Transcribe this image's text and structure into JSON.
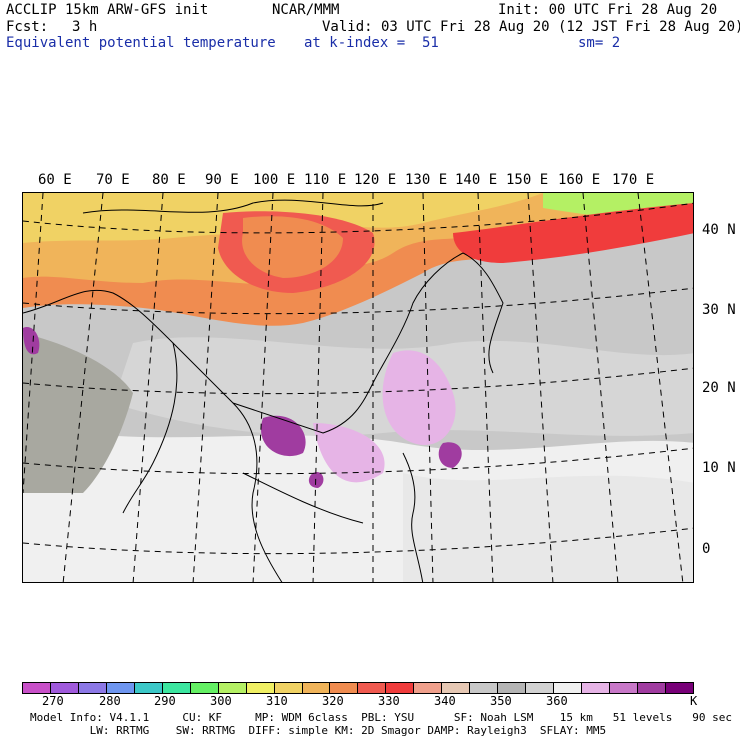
{
  "header": {
    "model": "ACCLIP 15km ARW-GFS init",
    "org": "NCAR/MMM",
    "init": "Init: 00 UTC Fri 28 Aug 20",
    "fcst_label": "Fcst:",
    "fcst_value": "3 h",
    "valid": "Valid: 03 UTC Fri 28 Aug 20 (12 JST Fri 28 Aug 20)",
    "field": "Equivalent potential temperature",
    "level": "at k-index =  51",
    "smoothing": "sm= 2"
  },
  "map": {
    "lon_labels": [
      "60 E",
      "70 E",
      "80 E",
      "90 E",
      "100 E",
      "110 E",
      "120 E",
      "130 E",
      "140 E",
      "150 E",
      "160 E",
      "170 E"
    ],
    "lat_labels": [
      "40 N",
      "30 N",
      "20 N",
      "10 N",
      "0"
    ]
  },
  "colorbar": {
    "colors": [
      "#c850c8",
      "#a05adc",
      "#8c78e6",
      "#6e96f0",
      "#3cc8c8",
      "#3ce6a0",
      "#64f064",
      "#b4f064",
      "#f0f064",
      "#f0d264",
      "#f0b45a",
      "#f08c50",
      "#f05a50",
      "#f03c3c",
      "#f0a08c",
      "#e6c8b4",
      "#c8c8c8",
      "#b4b4b4",
      "#d2d2d2",
      "#f0f0f0",
      "#e6b4e6",
      "#c878c8",
      "#a03ca0",
      "#780078"
    ],
    "labels": [
      "270",
      "280",
      "290",
      "300",
      "310",
      "320",
      "330",
      "340",
      "350",
      "360"
    ],
    "unit": "K"
  },
  "footer": {
    "line1": "Model Info: V4.1.1     CU: KF     MP: WDM 6class  PBL: YSU      SF: Noah LSM    15 km   51 levels   90 sec",
    "line2": "         LW: RRTMG    SW: RRTMG  DIFF: simple KM: 2D Smagor DAMP: Rayleigh3  SFLAY: MM5"
  }
}
